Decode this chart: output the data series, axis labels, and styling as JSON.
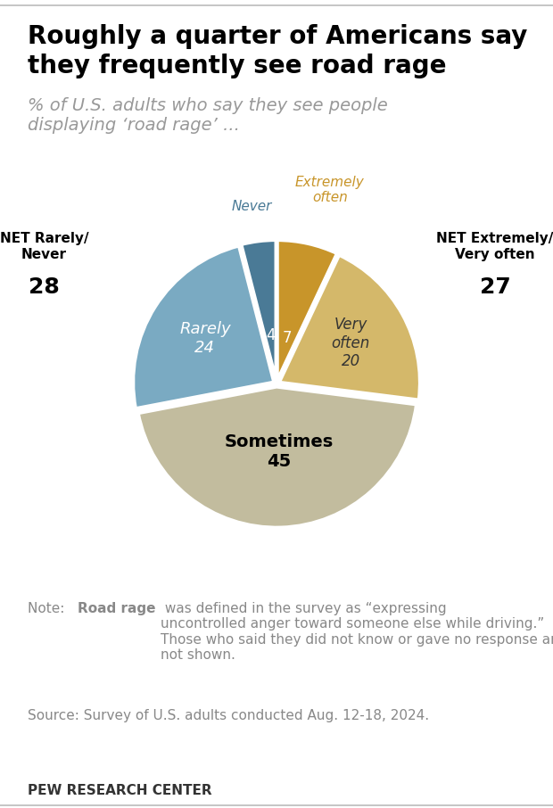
{
  "title": "Roughly a quarter of Americans say\nthey frequently see road rage",
  "subtitle": "% of U.S. adults who say they see people\ndisplaying ‘road rage’ ...",
  "slices": [
    {
      "label": "Extremely\noften",
      "value": 7,
      "color": "#C8952A",
      "text_color": "#C8952A"
    },
    {
      "label": "Very\noften",
      "value": 20,
      "color": "#D4B86A",
      "text_color": "#333333"
    },
    {
      "label": "Sometimes",
      "value": 45,
      "color": "#C2BC9E",
      "text_color": "#000000"
    },
    {
      "label": "Rarely",
      "value": 24,
      "color": "#7AAAC2",
      "text_color": "#ffffff"
    },
    {
      "label": "Never",
      "value": 4,
      "color": "#4A7A96",
      "text_color": "#4A7A96"
    }
  ],
  "slice_values": [
    7,
    20,
    45,
    24,
    4
  ],
  "net_right_label": "NET Extremely/\nVery often",
  "net_right_value": "27",
  "net_left_label": "NET Rarely/\nNever",
  "net_left_value": "28",
  "note_normal1": "Note: ",
  "note_bold": "Road rage",
  "note_normal2": " was defined in the survey as “expressing\nuncontrolled anger toward someone else while driving.”\nThose who said they did not know or gave no response are\nnot shown.",
  "note_source": "Source: Survey of U.S. adults conducted Aug. 12-18, 2024.",
  "footer": "PEW RESEARCH CENTER",
  "background_color": "#FFFFFF",
  "title_color": "#000000",
  "subtitle_color": "#999999",
  "note_color": "#888888",
  "footer_color": "#333333",
  "title_fontsize": 20,
  "subtitle_fontsize": 14,
  "note_fontsize": 11,
  "footer_fontsize": 11
}
